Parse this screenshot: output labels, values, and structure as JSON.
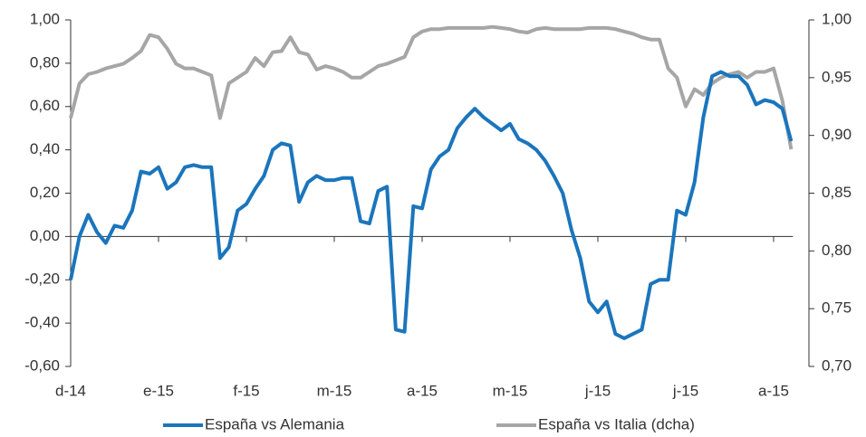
{
  "chart_data": {
    "type": "line",
    "categories": [
      "d-14",
      null,
      null,
      null,
      null,
      null,
      null,
      null,
      null,
      null,
      "e-15",
      null,
      null,
      null,
      null,
      null,
      null,
      null,
      null,
      null,
      "f-15",
      null,
      null,
      null,
      null,
      null,
      null,
      null,
      null,
      null,
      "m-15",
      null,
      null,
      null,
      null,
      null,
      null,
      null,
      null,
      null,
      "a-15",
      null,
      null,
      null,
      null,
      null,
      null,
      null,
      null,
      null,
      "m-15",
      null,
      null,
      null,
      null,
      null,
      null,
      null,
      null,
      null,
      "j-15",
      null,
      null,
      null,
      null,
      null,
      null,
      null,
      null,
      null,
      "j-15",
      null,
      null,
      null,
      null,
      null,
      null,
      null,
      null,
      null,
      "a-15",
      null,
      null
    ],
    "series": [
      {
        "name": "España vs Alemania",
        "color": "#1b75bc",
        "values": [
          -0.2,
          0.0,
          0.1,
          0.02,
          -0.03,
          0.05,
          0.04,
          0.12,
          0.3,
          0.29,
          0.32,
          0.22,
          0.25,
          0.32,
          0.33,
          0.32,
          0.32,
          -0.1,
          -0.05,
          0.12,
          0.15,
          0.22,
          0.28,
          0.4,
          0.43,
          0.42,
          0.16,
          0.25,
          0.28,
          0.26,
          0.26,
          0.27,
          0.27,
          0.07,
          0.06,
          0.21,
          0.23,
          -0.43,
          -0.44,
          0.14,
          0.13,
          0.31,
          0.37,
          0.4,
          0.5,
          0.55,
          0.59,
          0.55,
          0.52,
          0.49,
          0.52,
          0.45,
          0.43,
          0.4,
          0.35,
          0.28,
          0.2,
          0.03,
          -0.1,
          -0.3,
          -0.35,
          -0.3,
          -0.45,
          -0.47,
          -0.45,
          -0.43,
          -0.22,
          -0.2,
          -0.2,
          0.12,
          0.1,
          0.25,
          0.55,
          0.74,
          0.76,
          0.74,
          0.74,
          0.7,
          0.61,
          0.63,
          0.62,
          0.59,
          0.44
        ]
      },
      {
        "name": "España vs Italia (dcha)",
        "color": "#a6a6a6",
        "axis": "y2",
        "values": [
          0.915,
          0.945,
          0.953,
          0.955,
          0.958,
          0.96,
          0.962,
          0.967,
          0.973,
          0.987,
          0.985,
          0.975,
          0.962,
          0.958,
          0.958,
          0.955,
          0.952,
          0.915,
          0.945,
          0.95,
          0.955,
          0.967,
          0.96,
          0.972,
          0.973,
          0.985,
          0.972,
          0.97,
          0.957,
          0.96,
          0.958,
          0.955,
          0.95,
          0.95,
          0.955,
          0.96,
          0.962,
          0.965,
          0.968,
          0.985,
          0.99,
          0.992,
          0.992,
          0.993,
          0.993,
          0.993,
          0.993,
          0.993,
          0.994,
          0.993,
          0.992,
          0.99,
          0.989,
          0.992,
          0.993,
          0.992,
          0.992,
          0.992,
          0.992,
          0.993,
          0.993,
          0.993,
          0.992,
          0.99,
          0.988,
          0.985,
          0.983,
          0.983,
          0.958,
          0.95,
          0.925,
          0.94,
          0.935,
          0.945,
          0.95,
          0.953,
          0.955,
          0.95,
          0.955,
          0.955,
          0.958,
          0.93,
          0.888
        ]
      }
    ],
    "ylim": [
      -0.6,
      1.0
    ],
    "yticks": [
      {
        "value": -0.6,
        "label": "-0,60"
      },
      {
        "value": -0.4,
        "label": "-0,40"
      },
      {
        "value": -0.2,
        "label": "-0,20"
      },
      {
        "value": 0,
        "label": "0,00"
      },
      {
        "value": 0.2,
        "label": "0,20"
      },
      {
        "value": 0.4,
        "label": "0,40"
      },
      {
        "value": 0.6,
        "label": "0,60"
      },
      {
        "value": 0.8,
        "label": "0,80"
      },
      {
        "value": 1.0,
        "label": "1,00"
      }
    ],
    "y2lim": [
      0.7,
      1.0
    ],
    "y2ticks": [
      {
        "value": 0.7,
        "label": "0,70"
      },
      {
        "value": 0.75,
        "label": "0,75"
      },
      {
        "value": 0.8,
        "label": "0,80"
      },
      {
        "value": 0.85,
        "label": "0,85"
      },
      {
        "value": 0.9,
        "label": "0,90"
      },
      {
        "value": 0.95,
        "label": "0,95"
      },
      {
        "value": 1.0,
        "label": "1,00"
      }
    ],
    "legend": "bottom"
  }
}
